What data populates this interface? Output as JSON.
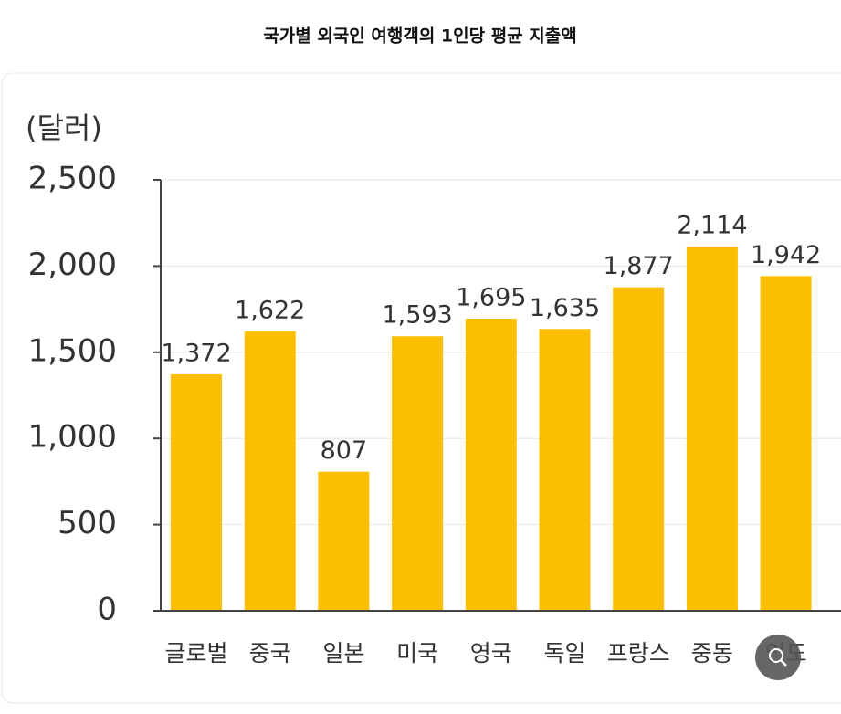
{
  "chart_data": {
    "type": "bar",
    "title": "국가별 외국인 여행객의 1인당 평균 지출액",
    "y_label": "(달러)",
    "categories": [
      "글로벌",
      "중국",
      "일본",
      "미국",
      "영국",
      "독일",
      "프랑스",
      "중동",
      "인도"
    ],
    "values": [
      1372,
      1622,
      807,
      1593,
      1695,
      1635,
      1877,
      2114,
      1942
    ],
    "value_labels": [
      "1,372",
      "1,622",
      "807",
      "1,593",
      "1,695",
      "1,635",
      "1,877",
      "2,114",
      "1,942"
    ],
    "color": "#fbbf00",
    "ylim": [
      0,
      2500
    ],
    "yticks": [
      0,
      500,
      {
        "value": 1000,
        "label": "1,000"
      },
      {
        "value": 1500,
        "label": "1,500"
      },
      {
        "value": 2000,
        "label": "2,000"
      },
      {
        "value": 2500,
        "label": "2,500"
      }
    ],
    "grid": true
  }
}
